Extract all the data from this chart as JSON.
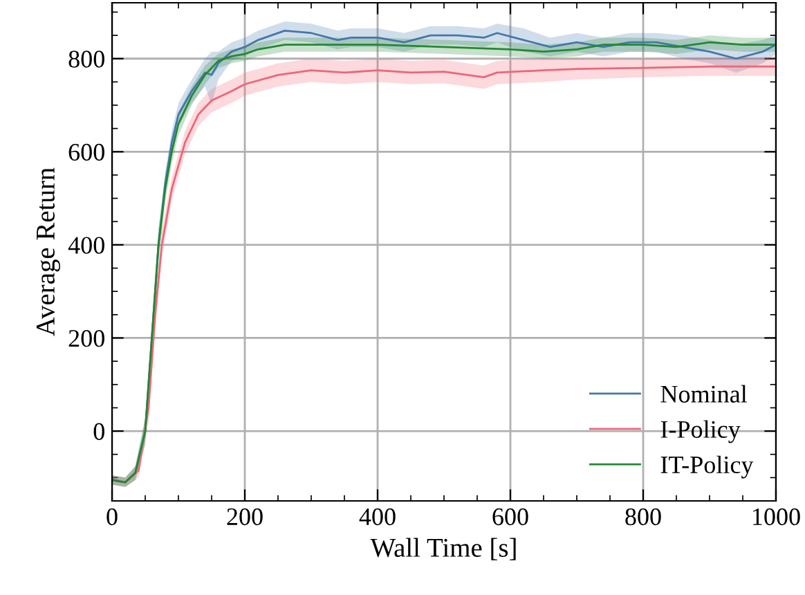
{
  "chart_data": {
    "type": "line",
    "xlabel": "Wall Time [s]",
    "ylabel": "Average Return",
    "xlim": [
      0,
      1000
    ],
    "ylim": [
      -150,
      920
    ],
    "xticks": [
      0,
      200,
      400,
      600,
      800,
      1000
    ],
    "yticks": [
      0,
      200,
      400,
      600,
      800
    ],
    "grid": true,
    "legend": "bottom right",
    "marker": "none",
    "line_style": "solid",
    "series": [
      {
        "name": "Nominal",
        "color": "#4477aa",
        "x": [
          0,
          20,
          35,
          50,
          60,
          70,
          80,
          90,
          100,
          120,
          140,
          150,
          160,
          180,
          200,
          220,
          260,
          300,
          340,
          360,
          400,
          440,
          480,
          520,
          560,
          580,
          620,
          660,
          700,
          740,
          780,
          820,
          860,
          900,
          940,
          980,
          1000
        ],
        "values": [
          -105,
          -110,
          -90,
          0,
          200,
          400,
          530,
          620,
          680,
          730,
          770,
          765,
          790,
          815,
          825,
          840,
          860,
          855,
          840,
          845,
          845,
          835,
          850,
          850,
          845,
          855,
          840,
          825,
          835,
          825,
          835,
          835,
          825,
          815,
          800,
          815,
          830
        ],
        "lower": [
          -115,
          -120,
          -105,
          -25,
          170,
          370,
          505,
          595,
          655,
          705,
          740,
          700,
          755,
          795,
          805,
          820,
          840,
          835,
          820,
          825,
          825,
          815,
          830,
          830,
          825,
          835,
          815,
          805,
          815,
          805,
          815,
          815,
          800,
          790,
          770,
          790,
          810
        ],
        "upper": [
          -95,
          -100,
          -75,
          25,
          230,
          430,
          555,
          645,
          705,
          755,
          800,
          815,
          815,
          835,
          845,
          860,
          880,
          875,
          860,
          865,
          865,
          855,
          870,
          870,
          865,
          875,
          865,
          845,
          855,
          845,
          855,
          855,
          850,
          840,
          830,
          840,
          850
        ]
      },
      {
        "name": "I-Policy",
        "color": "#ee6677",
        "x": [
          0,
          20,
          40,
          55,
          65,
          75,
          90,
          110,
          130,
          150,
          180,
          200,
          250,
          300,
          350,
          400,
          450,
          500,
          560,
          580,
          650,
          700,
          800,
          900,
          1000
        ],
        "values": [
          -105,
          -110,
          -85,
          50,
          250,
          400,
          520,
          620,
          680,
          710,
          730,
          745,
          765,
          775,
          770,
          775,
          770,
          772,
          760,
          770,
          775,
          778,
          780,
          783,
          783
        ],
        "lower": [
          -115,
          -120,
          -100,
          20,
          220,
          370,
          495,
          595,
          655,
          685,
          705,
          720,
          740,
          750,
          745,
          750,
          745,
          747,
          735,
          745,
          750,
          755,
          760,
          763,
          763
        ],
        "upper": [
          -95,
          -100,
          -70,
          80,
          280,
          430,
          545,
          645,
          705,
          735,
          755,
          770,
          790,
          800,
          795,
          800,
          795,
          797,
          785,
          795,
          800,
          800,
          800,
          803,
          803
        ]
      },
      {
        "name": "IT-Policy",
        "color": "#228833",
        "x": [
          0,
          20,
          35,
          50,
          60,
          70,
          80,
          90,
          100,
          120,
          140,
          160,
          180,
          200,
          220,
          260,
          300,
          400,
          500,
          600,
          650,
          700,
          740,
          800,
          850,
          900,
          950,
          1000
        ],
        "values": [
          -105,
          -110,
          -90,
          0,
          200,
          400,
          520,
          600,
          660,
          720,
          765,
          795,
          805,
          810,
          820,
          830,
          830,
          830,
          825,
          820,
          815,
          820,
          830,
          830,
          825,
          835,
          830,
          830
        ],
        "lower": [
          -115,
          -120,
          -105,
          -30,
          165,
          365,
          490,
          575,
          635,
          700,
          745,
          780,
          790,
          795,
          805,
          815,
          815,
          815,
          810,
          805,
          800,
          805,
          815,
          815,
          810,
          820,
          815,
          815
        ],
        "upper": [
          -95,
          -100,
          -75,
          30,
          235,
          435,
          550,
          625,
          685,
          740,
          785,
          810,
          820,
          825,
          835,
          845,
          845,
          845,
          840,
          835,
          830,
          835,
          845,
          845,
          840,
          850,
          845,
          845
        ]
      }
    ]
  }
}
